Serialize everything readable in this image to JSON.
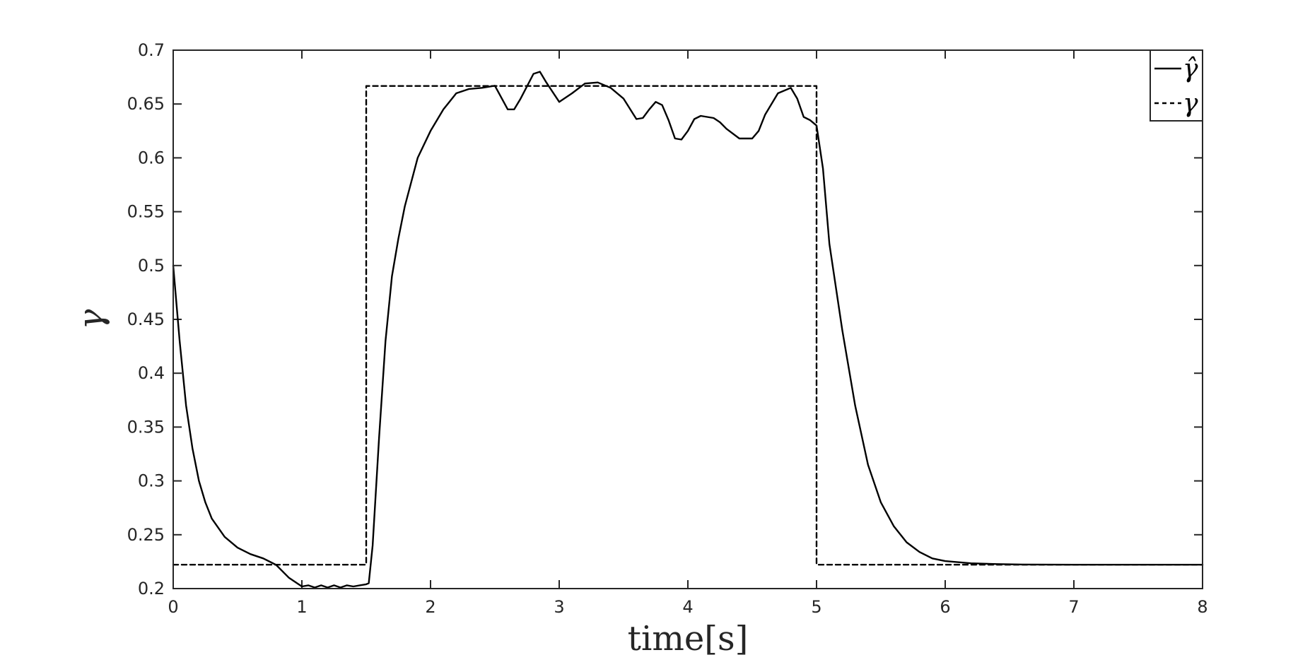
{
  "chart_data": {
    "type": "line",
    "xlabel": "time[s]",
    "ylabel": "γ",
    "xlim": [
      0,
      8
    ],
    "ylim": [
      0.2,
      0.7
    ],
    "xticks": [
      0,
      1,
      2,
      3,
      4,
      5,
      6,
      7,
      8
    ],
    "xtick_labels": [
      "0",
      "1",
      "2",
      "3",
      "4",
      "5",
      "6",
      "7",
      "8"
    ],
    "yticks": [
      0.2,
      0.25,
      0.3,
      0.35,
      0.4,
      0.45,
      0.5,
      0.55,
      0.6,
      0.65,
      0.7
    ],
    "ytick_labels": [
      "0.2",
      "0.25",
      "0.3",
      "0.35",
      "0.4",
      "0.45",
      "0.5",
      "0.55",
      "0.6",
      "0.65",
      "0.7"
    ],
    "grid": false,
    "legend_position": "top-right",
    "series": [
      {
        "name": "γ̂",
        "style": "solid",
        "color": "#000000",
        "x": [
          0,
          0.05,
          0.1,
          0.15,
          0.2,
          0.25,
          0.3,
          0.4,
          0.5,
          0.6,
          0.7,
          0.8,
          0.9,
          1.0,
          1.05,
          1.1,
          1.15,
          1.2,
          1.25,
          1.3,
          1.35,
          1.4,
          1.45,
          1.5,
          1.52,
          1.55,
          1.6,
          1.65,
          1.7,
          1.75,
          1.8,
          1.9,
          2.0,
          2.1,
          2.2,
          2.3,
          2.4,
          2.5,
          2.6,
          2.65,
          2.7,
          2.8,
          2.85,
          2.9,
          3.0,
          3.1,
          3.2,
          3.3,
          3.4,
          3.5,
          3.6,
          3.65,
          3.7,
          3.75,
          3.8,
          3.85,
          3.9,
          3.95,
          4.0,
          4.05,
          4.1,
          4.15,
          4.2,
          4.25,
          4.3,
          4.4,
          4.5,
          4.55,
          4.6,
          4.7,
          4.8,
          4.85,
          4.9,
          4.95,
          5.0,
          5.05,
          5.1,
          5.2,
          5.3,
          5.4,
          5.5,
          5.6,
          5.7,
          5.8,
          5.9,
          6.0,
          6.2,
          6.4,
          6.6,
          7.0,
          8.0
        ],
        "y": [
          0.5,
          0.43,
          0.37,
          0.33,
          0.3,
          0.28,
          0.265,
          0.248,
          0.238,
          0.232,
          0.228,
          0.222,
          0.21,
          0.202,
          0.203,
          0.201,
          0.203,
          0.201,
          0.203,
          0.201,
          0.203,
          0.202,
          0.203,
          0.204,
          0.205,
          0.24,
          0.34,
          0.43,
          0.49,
          0.525,
          0.555,
          0.6,
          0.625,
          0.645,
          0.66,
          0.664,
          0.665,
          0.667,
          0.645,
          0.645,
          0.655,
          0.678,
          0.68,
          0.67,
          0.652,
          0.66,
          0.669,
          0.67,
          0.665,
          0.655,
          0.636,
          0.637,
          0.645,
          0.652,
          0.649,
          0.635,
          0.618,
          0.617,
          0.625,
          0.636,
          0.639,
          0.638,
          0.637,
          0.633,
          0.627,
          0.618,
          0.618,
          0.625,
          0.64,
          0.66,
          0.665,
          0.655,
          0.638,
          0.635,
          0.63,
          0.59,
          0.52,
          0.44,
          0.37,
          0.315,
          0.28,
          0.258,
          0.243,
          0.234,
          0.228,
          0.2255,
          0.2235,
          0.2228,
          0.2224,
          0.2222,
          0.2222
        ]
      },
      {
        "name": "γ",
        "style": "dashed",
        "color": "#000000",
        "x": [
          0,
          1.5,
          1.5,
          5.0,
          5.0,
          8.0
        ],
        "y": [
          0.2222,
          0.2222,
          0.6667,
          0.6667,
          0.2222,
          0.2222
        ]
      }
    ]
  }
}
